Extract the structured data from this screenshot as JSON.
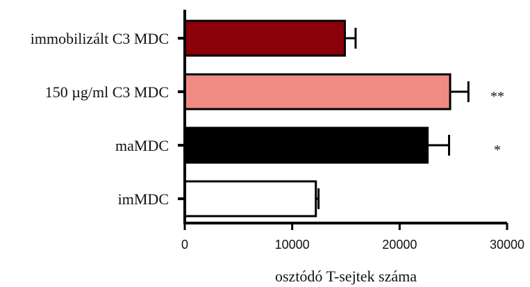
{
  "chart_data": {
    "type": "bar",
    "orientation": "horizontal",
    "title": "",
    "xlabel": "osztódó T-sejtek száma",
    "ylabel": "",
    "xlim": [
      0,
      30000
    ],
    "x_ticks": [
      0,
      10000,
      20000,
      30000
    ],
    "x_tick_labels": [
      "0",
      "10000",
      "20000",
      "30000"
    ],
    "grid": false,
    "categories": [
      "immobilizált C3 MDC",
      "150 µg/ml C3 MDC",
      "maMDC",
      "imMDC"
    ],
    "values": [
      14900,
      24700,
      22600,
      12200
    ],
    "errors": [
      1000,
      1700,
      2000,
      250
    ],
    "significance": [
      "",
      "**",
      "*",
      ""
    ],
    "colors": [
      "#8b0009",
      "#ef8b83",
      "#000000",
      "#ffffff"
    ]
  }
}
